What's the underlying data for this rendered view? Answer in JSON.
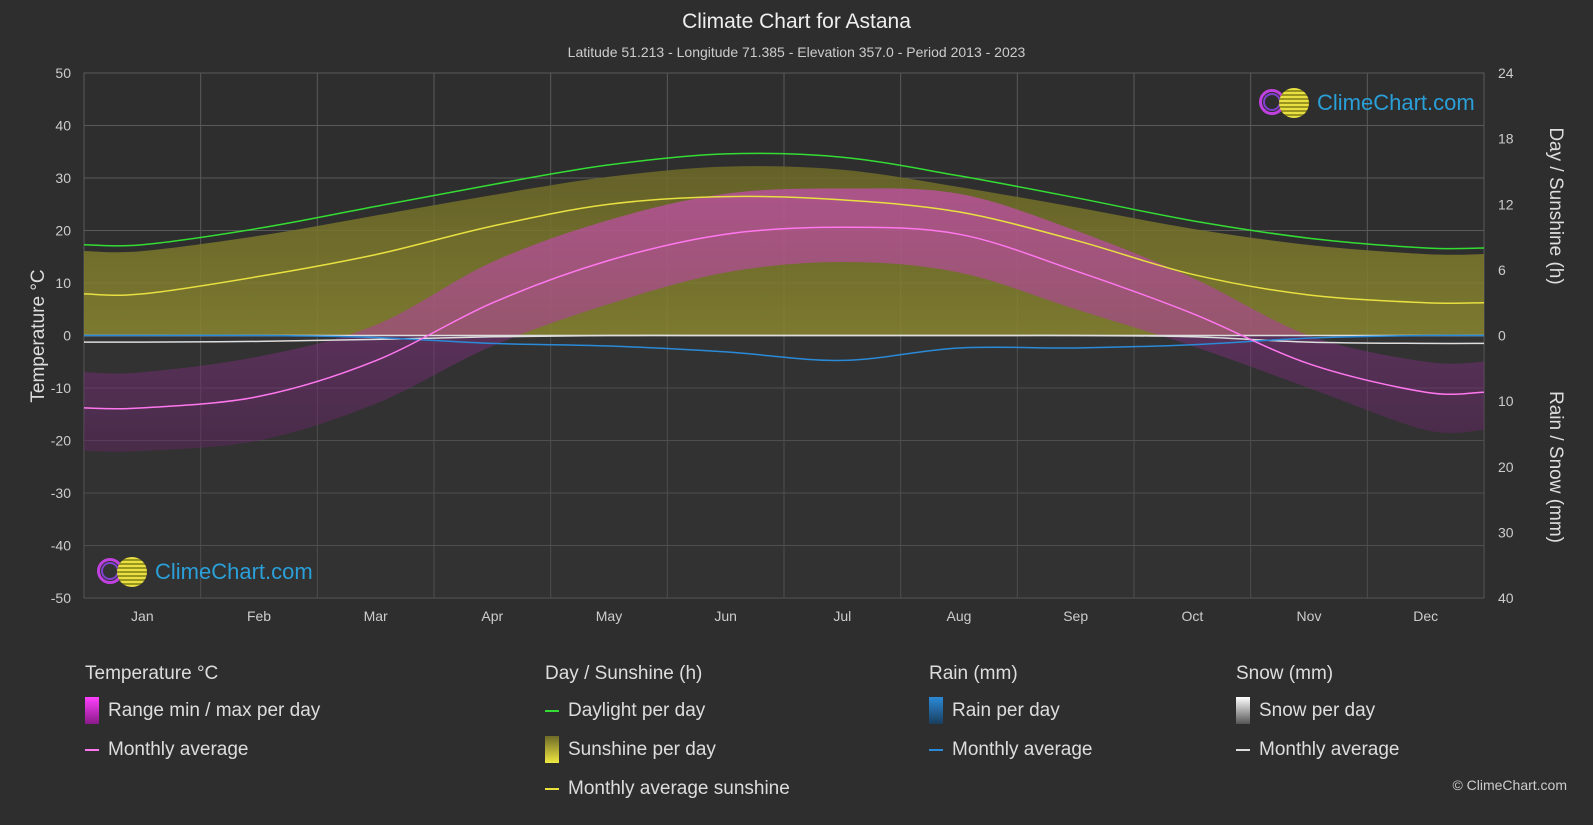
{
  "header": {
    "title": "Climate Chart for Astana",
    "subtitle": "Latitude 51.213 - Longitude 71.385 - Elevation 357.0 - Period 2013 - 2023"
  },
  "axes": {
    "left_label": "Temperature °C",
    "right_top_label": "Day / Sunshine (h)",
    "right_bottom_label": "Rain / Snow (mm)"
  },
  "legend": {
    "temperature": {
      "title": "Temperature °C",
      "range": "Range min / max per day",
      "avg": "Monthly average"
    },
    "sunshine": {
      "title": "Day / Sunshine (h)",
      "daylight": "Daylight per day",
      "sunshine": "Sunshine per day",
      "avg": "Monthly average sunshine"
    },
    "rain": {
      "title": "Rain (mm)",
      "per_day": "Rain per day",
      "avg": "Monthly average"
    },
    "snow": {
      "title": "Snow (mm)",
      "per_day": "Snow per day",
      "avg": "Monthly average"
    }
  },
  "logo": {
    "text": "ClimeChart.com"
  },
  "copyright": "© ClimeChart.com",
  "colors": {
    "background": "#2e2e2e",
    "grid": "#5a5a5a",
    "daylight": "#33dd33",
    "sunshine": "#e8e040",
    "temperature_avg": "#ff77ee",
    "temperature_range": "#d030c8",
    "rain": "#2a8ad8",
    "snow": "#dddddd",
    "logo": "#2a9fd8"
  },
  "chart_data": {
    "type": "line",
    "months": [
      "Jan",
      "Feb",
      "Mar",
      "Apr",
      "May",
      "Jun",
      "Jul",
      "Aug",
      "Sep",
      "Oct",
      "Nov",
      "Dec"
    ],
    "temperature_axis": {
      "ylim": [
        -50,
        50
      ],
      "ticks": [
        50,
        40,
        30,
        20,
        10,
        0,
        -10,
        -20,
        -30,
        -40,
        -50
      ]
    },
    "sunshine_axis": {
      "ylim": [
        0,
        24
      ],
      "ticks": [
        24,
        18,
        12,
        6,
        0
      ]
    },
    "precip_axis": {
      "ylim": [
        0,
        40
      ],
      "inverted": true,
      "ticks": [
        0,
        10,
        20,
        30,
        40
      ]
    },
    "series": [
      {
        "name": "Daylight per day",
        "axis": "sunshine",
        "unit": "h",
        "values": [
          8.3,
          9.8,
          11.8,
          13.8,
          15.6,
          16.6,
          16.3,
          14.6,
          12.6,
          10.5,
          8.9,
          8.0
        ]
      },
      {
        "name": "Monthly average sunshine",
        "axis": "sunshine",
        "unit": "h",
        "values": [
          3.8,
          5.4,
          7.4,
          10.0,
          12.0,
          12.7,
          12.4,
          11.3,
          8.7,
          5.6,
          3.7,
          3.0
        ]
      },
      {
        "name": "Temperature monthly average",
        "axis": "temperature",
        "unit": "°C",
        "values": [
          -13.8,
          -11.6,
          -4.8,
          6.2,
          14.3,
          19.3,
          20.6,
          19.3,
          12.3,
          4.2,
          -5.4,
          -10.8
        ]
      },
      {
        "name": "Temperature range min",
        "axis": "temperature",
        "unit": "°C",
        "values": [
          -22,
          -20,
          -13,
          -2,
          6,
          12,
          14,
          12,
          5,
          -2,
          -10,
          -18
        ]
      },
      {
        "name": "Temperature range max",
        "axis": "temperature",
        "unit": "°C",
        "values": [
          -7,
          -4,
          2,
          14,
          22,
          27,
          28,
          27,
          20,
          11,
          0,
          -5
        ]
      },
      {
        "name": "Rain monthly average",
        "axis": "precip",
        "unit": "mm",
        "values": [
          0.0,
          0.0,
          0.3,
          1.2,
          1.6,
          2.5,
          3.8,
          1.9,
          1.9,
          1.4,
          0.4,
          0.0
        ]
      },
      {
        "name": "Snow monthly average",
        "axis": "precip",
        "unit": "mm",
        "values": [
          1.0,
          0.9,
          0.6,
          0.2,
          0.0,
          0.0,
          0.0,
          0.0,
          0.0,
          0.2,
          1.0,
          1.2
        ]
      }
    ]
  }
}
